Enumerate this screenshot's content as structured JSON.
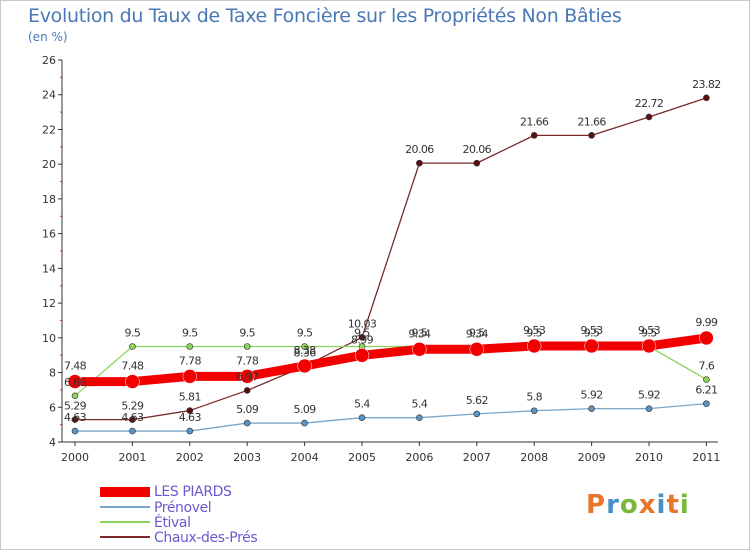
{
  "header": {
    "title": "Evolution du Taux de Taxe Foncière sur les Propriétés Non Bâties",
    "unit": "(en %)"
  },
  "logo": {
    "text": "Proxiti",
    "colors": [
      "#e8762b",
      "#4a90c8",
      "#7ab83a",
      "#e8762b",
      "#4a90c8",
      "#e8762b",
      "#7ab83a"
    ]
  },
  "chart_data": {
    "type": "line",
    "title": "Evolution du Taux de Taxe Foncière sur les Propriétés Non Bâties",
    "ylabel": "(en %)",
    "xlabel": "",
    "ylim": [
      4,
      26
    ],
    "yticks": [
      4,
      6,
      8,
      10,
      12,
      14,
      16,
      18,
      20,
      22,
      24,
      26
    ],
    "grid": false,
    "legend_position": "bottom-left",
    "x": [
      "2000",
      "2001",
      "2002",
      "2003",
      "2004",
      "2005",
      "2006",
      "2007",
      "2008",
      "2009",
      "2010",
      "2011"
    ],
    "series": [
      {
        "name": "Chaux-des-Prés",
        "color": "#7a2a2a",
        "marker_fill": "#5a1010",
        "values": [
          5.29,
          5.29,
          5.81,
          6.97,
          8.36,
          10.03,
          20.06,
          20.06,
          21.66,
          21.66,
          22.72,
          23.82
        ],
        "labels": [
          "5.29",
          "5.29",
          "5.81",
          "6.97",
          "8.36",
          "10.03",
          "20.06",
          "20.06",
          "21.66",
          "21.66",
          "22.72",
          "23.82"
        ]
      },
      {
        "name": "Étival",
        "color": "#8fd45a",
        "marker_fill": "#8fd45a",
        "values": [
          6.66,
          9.5,
          9.5,
          9.5,
          9.5,
          9.5,
          9.5,
          9.5,
          9.5,
          9.5,
          9.5,
          7.6
        ],
        "labels": [
          "6.66",
          "9.5",
          "9.5",
          "9.5",
          "9.5",
          "9.5",
          "9.5",
          "9.5",
          "9.5",
          "9.5",
          "9.5",
          "7.6"
        ]
      },
      {
        "name": "Prénovel",
        "color": "#7aa6c9",
        "marker_fill": "#5b93c2",
        "values": [
          4.63,
          4.63,
          4.63,
          5.09,
          5.09,
          5.4,
          5.4,
          5.62,
          5.8,
          5.92,
          5.92,
          6.21
        ],
        "labels": [
          "4.63",
          "4.63",
          "4.63",
          "5.09",
          "5.09",
          "5.4",
          "5.4",
          "5.62",
          "5.8",
          "5.92",
          "5.92",
          "6.21"
        ]
      },
      {
        "name": "LES PIARDS",
        "color": "#f20000",
        "marker_fill": "#f20000",
        "values": [
          7.48,
          7.48,
          7.78,
          7.78,
          8.38,
          8.99,
          9.34,
          9.34,
          9.53,
          9.53,
          9.53,
          9.99
        ],
        "labels": [
          "7.48",
          "7.48",
          "7.78",
          "7.78",
          "8.38",
          "8.99",
          "9.34",
          "9.34",
          "9.53",
          "9.53",
          "9.53",
          "9.99"
        ]
      }
    ],
    "legend": [
      {
        "name": "LES PIARDS",
        "color": "#f20000",
        "text_color": "#6a5acd"
      },
      {
        "name": "Prénovel",
        "color": "#7aa6c9",
        "text_color": "#6a5acd"
      },
      {
        "name": "Étival",
        "color": "#8fd45a",
        "text_color": "#6a5acd"
      },
      {
        "name": "Chaux-des-Prés",
        "color": "#7a2a2a",
        "text_color": "#6a5acd"
      }
    ]
  }
}
